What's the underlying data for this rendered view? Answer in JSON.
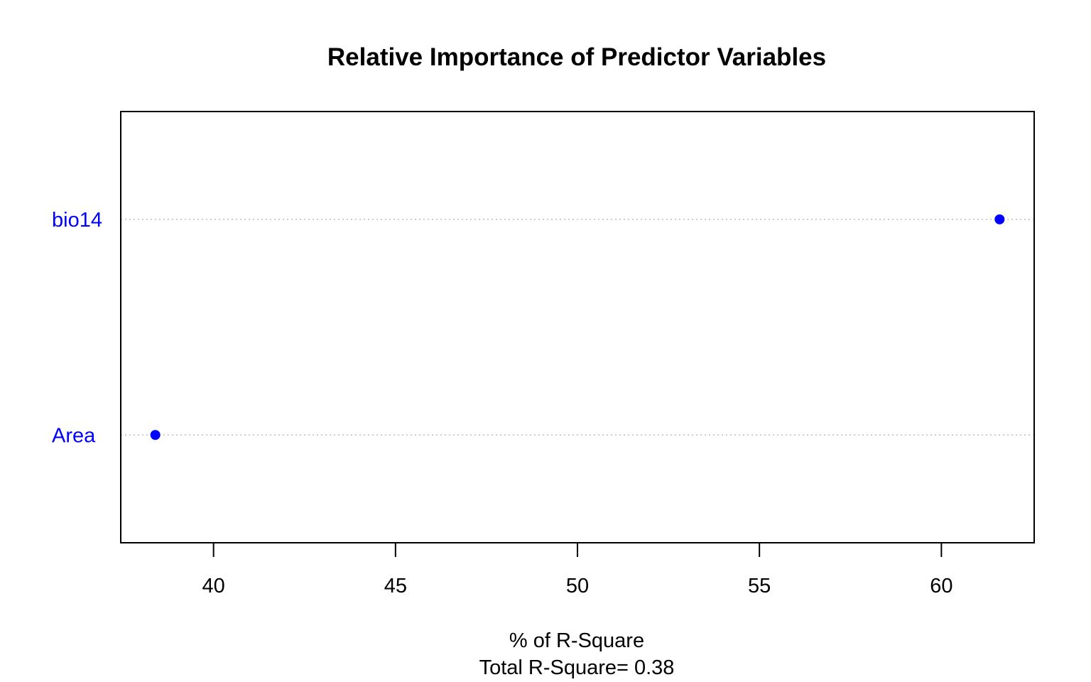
{
  "chart_data": {
    "type": "scatter",
    "title": "Relative Importance of Predictor Variables",
    "xlabel": "% of R-Square",
    "subtitle": "Total R-Square= 0.38",
    "categories": [
      "Area",
      "bio14"
    ],
    "values": [
      38.4,
      61.6
    ],
    "xlim": [
      37.45,
      62.55
    ],
    "xticks": [
      40,
      45,
      50,
      55,
      60
    ],
    "xtick_labels": [
      "40",
      "45",
      "50",
      "55",
      "60"
    ],
    "grid": "horizontal dotted guide lines per category",
    "point_color": "#0000ff",
    "label_color": "#0000ff",
    "guide_color": "#bebebe"
  }
}
